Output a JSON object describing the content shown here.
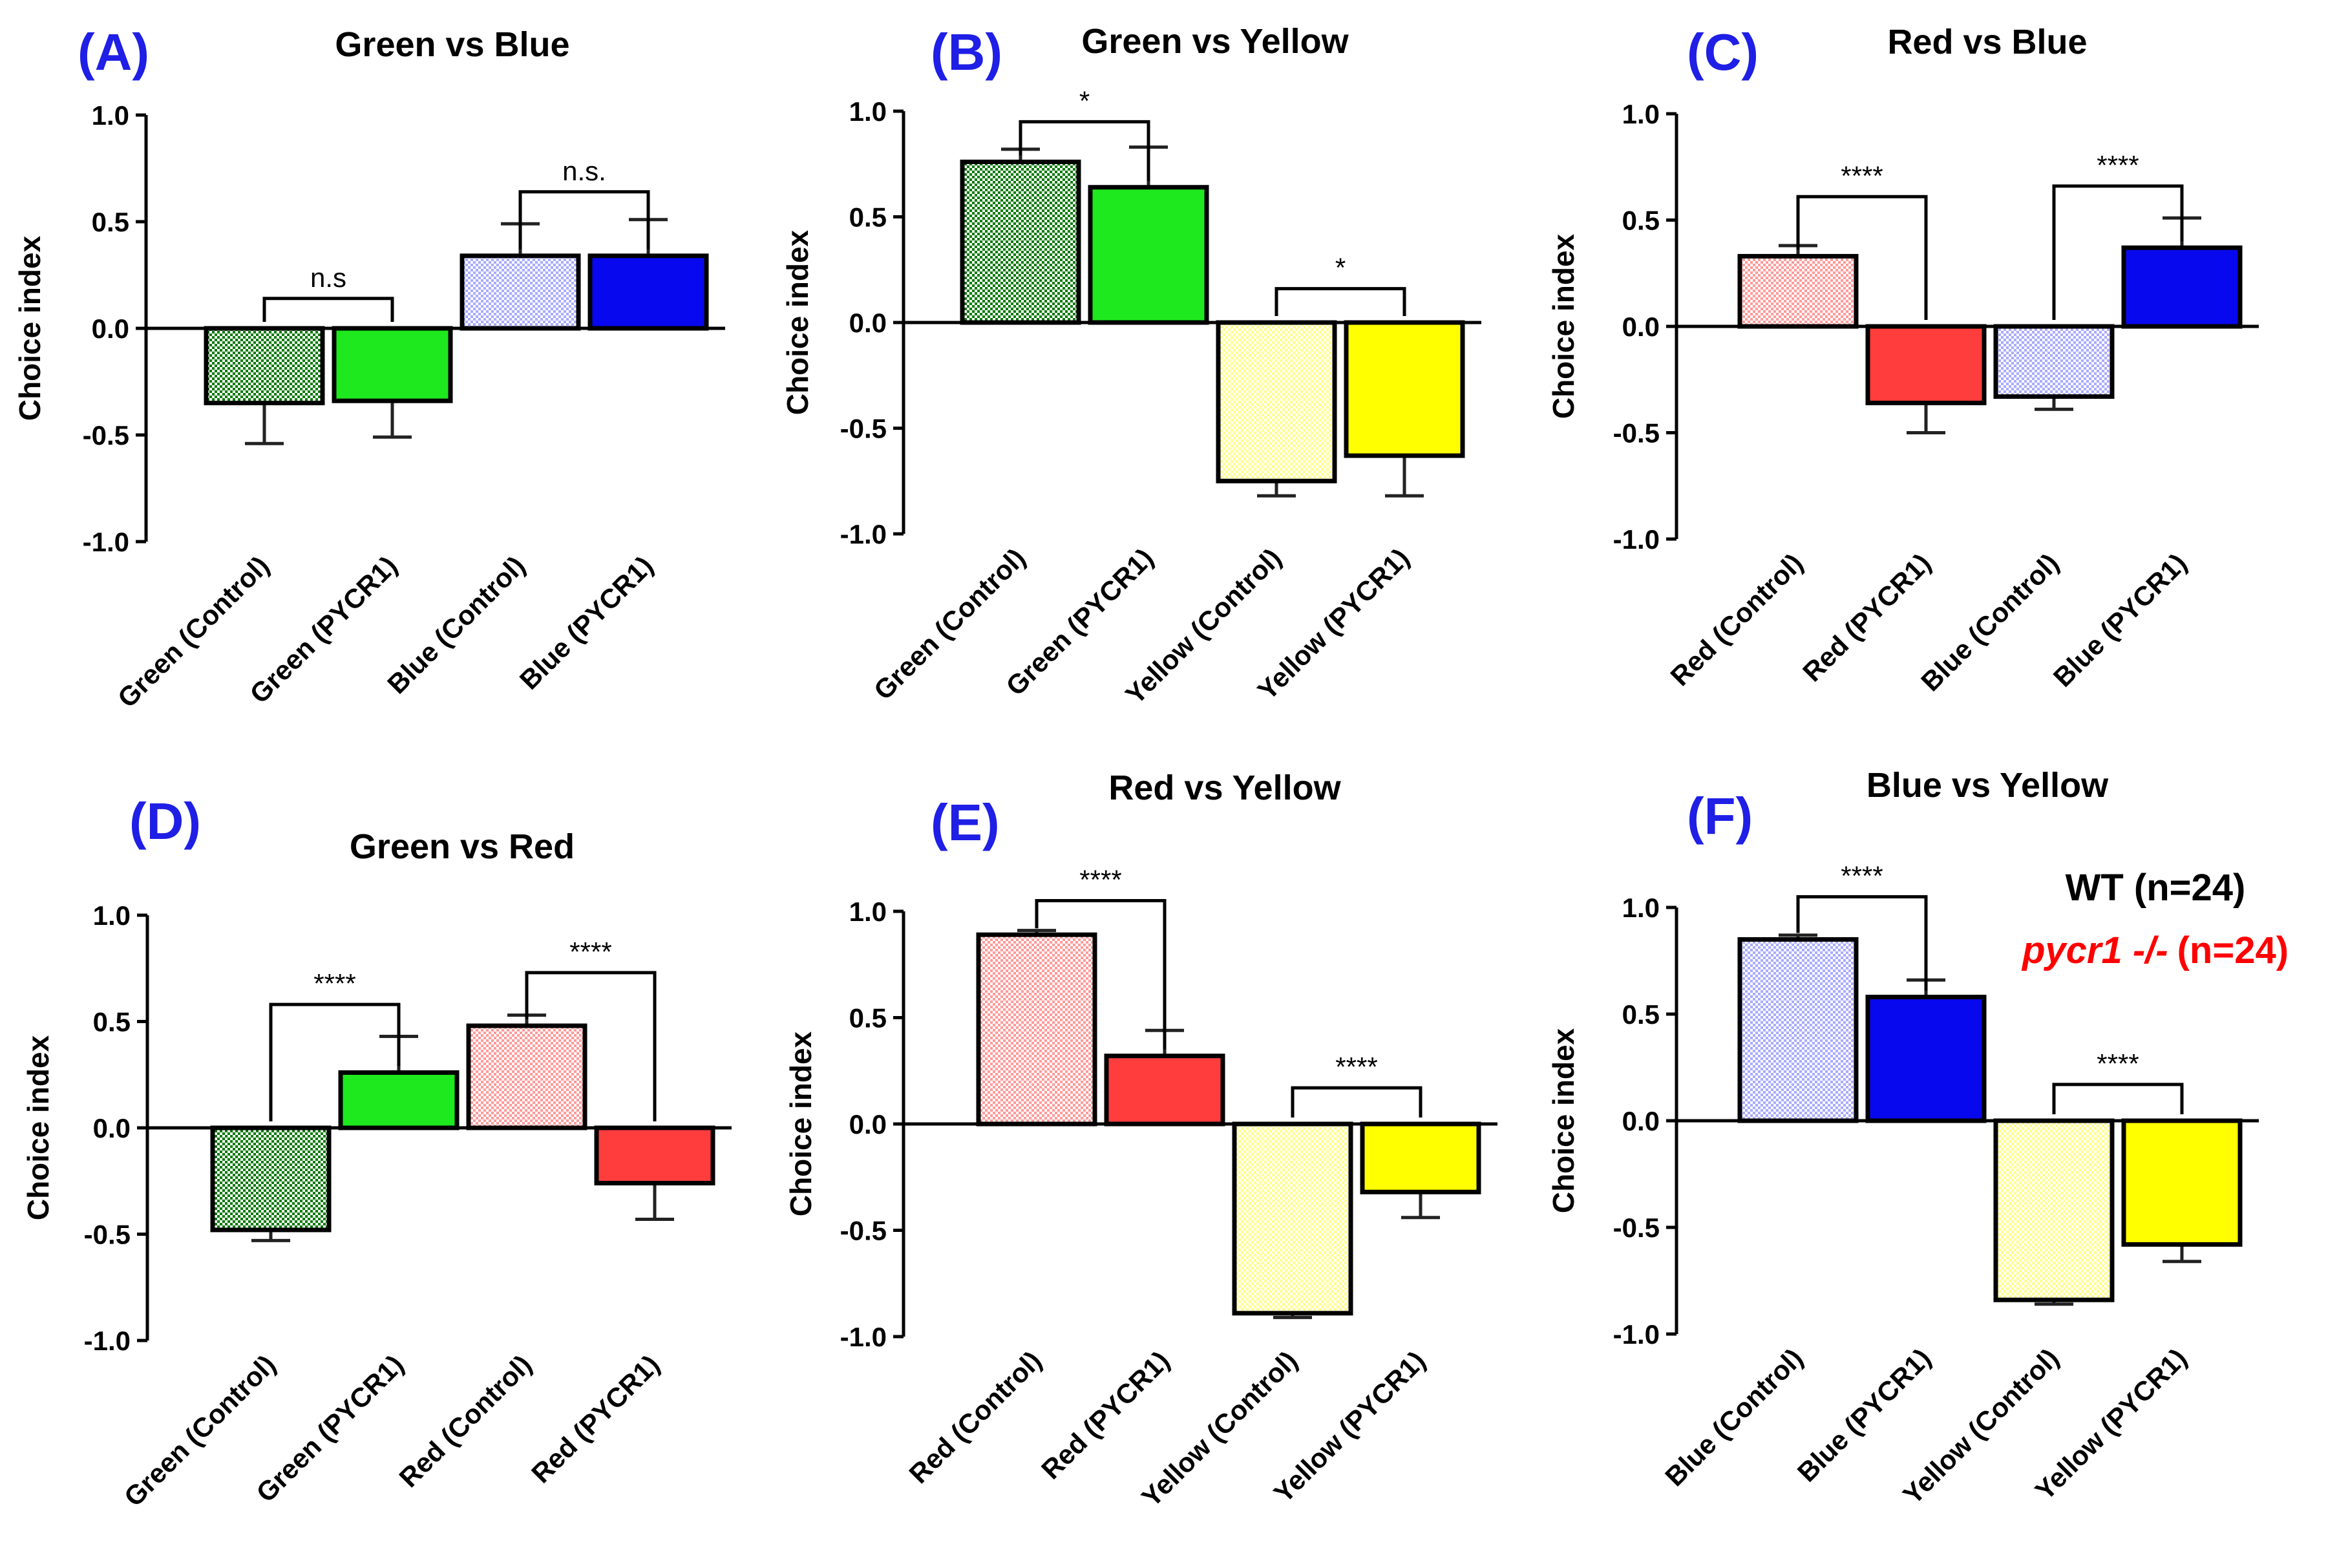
{
  "colors": {
    "panel_letter": "#1f1fe6",
    "axis": "#000000",
    "green_dark": "#0b7a0b",
    "green": "#1ee81e",
    "blue_light": "#aaaaff",
    "blue": "#0808ee",
    "yellow_light": "#ffff8c",
    "yellow": "#ffff00",
    "red_light": "#ff9a9a",
    "red": "#ff3d3d",
    "legend_wt": "#000000",
    "legend_mut": "#ff0000"
  },
  "legend": {
    "wt": "WT (n=24)",
    "mutant_gene": "pycr1 -/-",
    "mutant_n": "(n=24)"
  },
  "chart_data": [
    {
      "type": "bar",
      "panel": "(A)",
      "title": "Green vs Blue",
      "ylabel": "Choice index",
      "ylim": [
        -1.0,
        1.0
      ],
      "yticks": [
        "1.0",
        "0.5",
        "0.0",
        "-0.5",
        "-1.0"
      ],
      "categories": [
        "Green (Control)",
        "Green (PYCR1)",
        "Blue (Control)",
        "Blue (PYCR1)"
      ],
      "values": [
        -0.35,
        -0.34,
        0.34,
        0.34
      ],
      "errors": [
        0.19,
        0.17,
        0.15,
        0.17
      ],
      "bar_colors": [
        "green_dark",
        "green",
        "blue_light",
        "blue"
      ],
      "patterned": [
        true,
        false,
        true,
        false
      ],
      "annotations": [
        {
          "pair": [
            0,
            1
          ],
          "label": "n.s",
          "y": 0.14
        },
        {
          "pair": [
            2,
            3
          ],
          "label": "n.s.",
          "y": 0.64
        }
      ]
    },
    {
      "type": "bar",
      "panel": "(B)",
      "title": "Green vs Yellow",
      "ylabel": "Choice index",
      "ylim": [
        -1.0,
        1.0
      ],
      "yticks": [
        "1.0",
        "0.5",
        "0.0",
        "-0.5",
        "-1.0"
      ],
      "categories": [
        "Green (Control)",
        "Green (PYCR1)",
        "Yellow (Control)",
        "Yellow (PYCR1)"
      ],
      "values": [
        0.76,
        0.64,
        -0.75,
        -0.63
      ],
      "errors": [
        0.06,
        0.19,
        0.07,
        0.19
      ],
      "bar_colors": [
        "green_dark",
        "green",
        "yellow_light",
        "yellow"
      ],
      "patterned": [
        true,
        false,
        true,
        false
      ],
      "annotations": [
        {
          "pair": [
            0,
            1
          ],
          "label": "*",
          "y": 0.95
        },
        {
          "pair": [
            2,
            3
          ],
          "label": "*",
          "y": 0.16
        }
      ]
    },
    {
      "type": "bar",
      "panel": "(C)",
      "title": "Red vs Blue",
      "ylabel": "Choice index",
      "ylim": [
        -1.0,
        1.0
      ],
      "yticks": [
        "1.0",
        "0.5",
        "0.0",
        "-0.5",
        "-1.0"
      ],
      "categories": [
        "Red (Control)",
        "Red (PYCR1)",
        "Blue (Control)",
        "Blue (PYCR1)"
      ],
      "values": [
        0.33,
        -0.36,
        -0.33,
        0.37
      ],
      "errors": [
        0.05,
        0.14,
        0.06,
        0.14
      ],
      "bar_colors": [
        "red_light",
        "red",
        "blue_light",
        "blue"
      ],
      "patterned": [
        true,
        false,
        true,
        false
      ],
      "annotations": [
        {
          "pair": [
            0,
            1
          ],
          "label": "****",
          "y": 0.61
        },
        {
          "pair": [
            2,
            3
          ],
          "label": "****",
          "y": 0.66
        }
      ]
    },
    {
      "type": "bar",
      "panel": "(D)",
      "title": "Green vs Red",
      "ylabel": "Choice index",
      "ylim": [
        -1.0,
        1.0
      ],
      "yticks": [
        "1.0",
        "0.5",
        "0.0",
        "-0.5",
        "-1.0"
      ],
      "categories": [
        "Green (Control)",
        "Green (PYCR1)",
        "Red (Control)",
        "Red (PYCR1)"
      ],
      "values": [
        -0.48,
        0.26,
        0.48,
        -0.26
      ],
      "errors": [
        0.05,
        0.17,
        0.05,
        0.17
      ],
      "bar_colors": [
        "green_dark",
        "green",
        "red_light",
        "red"
      ],
      "patterned": [
        true,
        false,
        true,
        false
      ],
      "annotations": [
        {
          "pair": [
            0,
            1
          ],
          "label": "****",
          "y": 0.58
        },
        {
          "pair": [
            2,
            3
          ],
          "label": "****",
          "y": 0.73
        }
      ]
    },
    {
      "type": "bar",
      "panel": "(E)",
      "title": "Red vs Yellow",
      "ylabel": "Choice index",
      "ylim": [
        -1.0,
        1.0
      ],
      "yticks": [
        "1.0",
        "0.5",
        "0.0",
        "-0.5",
        "-1.0"
      ],
      "categories": [
        "Red (Control)",
        "Red (PYCR1)",
        "Yellow (Control)",
        "Yellow (PYCR1)"
      ],
      "values": [
        0.89,
        0.32,
        -0.89,
        -0.32
      ],
      "errors": [
        0.02,
        0.12,
        0.02,
        0.12
      ],
      "bar_colors": [
        "red_light",
        "red",
        "yellow_light",
        "yellow"
      ],
      "patterned": [
        true,
        false,
        true,
        false
      ],
      "annotations": [
        {
          "pair": [
            0,
            1
          ],
          "label": "****",
          "y": 1.05
        },
        {
          "pair": [
            2,
            3
          ],
          "label": "****",
          "y": 0.17
        }
      ]
    },
    {
      "type": "bar",
      "panel": "(F)",
      "title": "Blue vs Yellow",
      "ylabel": "Choice index",
      "ylim": [
        -1.0,
        1.0
      ],
      "yticks": [
        "1.0",
        "0.5",
        "0.0",
        "-0.5",
        "-1.0"
      ],
      "categories": [
        "Blue (Control)",
        "Blue (PYCR1)",
        "Yellow (Control)",
        "Yellow (PYCR1)"
      ],
      "values": [
        0.85,
        0.58,
        -0.84,
        -0.58
      ],
      "errors": [
        0.02,
        0.08,
        0.02,
        0.08
      ],
      "bar_colors": [
        "blue_light",
        "blue",
        "yellow_light",
        "yellow"
      ],
      "patterned": [
        true,
        false,
        true,
        false
      ],
      "annotations": [
        {
          "pair": [
            0,
            1
          ],
          "label": "****",
          "y": 1.05
        },
        {
          "pair": [
            2,
            3
          ],
          "label": "****",
          "y": 0.17
        }
      ]
    }
  ]
}
